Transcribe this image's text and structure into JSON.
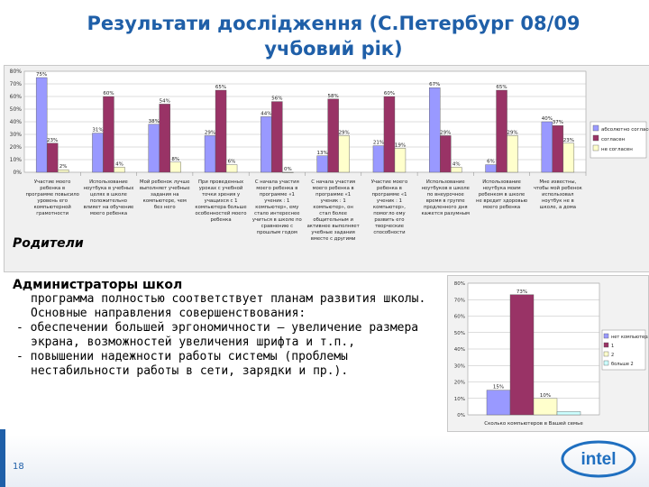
{
  "slide": {
    "title_line1": "Результати дослідження (С.Петербург 08/09",
    "title_line2": "учбовий рік)",
    "parents_label": "Родители",
    "page_number": "18",
    "logo_text": "intel"
  },
  "admin": {
    "title": "Администраторы школ",
    "text": "программа полностью соответствует планам развития школы. Основные направления совершенствования:",
    "items": [
      "- обеспечении большей эргономичности – увеличение размера экрана, возможностей увеличения шрифта и т.п.,",
      "- повышении надежности работы системы (проблемы нестабильности работы в сети, зарядки и пр.)."
    ]
  },
  "chart_data": [
    {
      "type": "bar",
      "ylim": [
        0,
        80
      ],
      "yticks": [
        "80%",
        "70%",
        "60%",
        "50%",
        "40%",
        "30%",
        "20%",
        "10%",
        "0%"
      ],
      "legend_position": "right",
      "categories": [
        "Участие моего ребенка в программе повысило уровень его компьютерной грамотности",
        "Использование ноутбука в учебных целях в школе положительно влияет на обучение моего ребенка",
        "Мой ребенок лучше выполняет учебные задания на компьютере, чем без него",
        "При проведенных уроках с учебной точки зрения у учащихся с 1 компьютера больше особенностей моего ребенка",
        "С начала участия моего ребенка в программе «1 ученик : 1 компьютер», ему стало интереснее учиться в школе по сравнению с прошлым годом",
        "С начала участия моего ребенка в программе «1 ученик : 1 компьютер», он стал более общительным и активнее выполняет учебные задания вместе с другими учащимися",
        "Участие моего ребенка в программе «1 ученик : 1 компьютер», помогло ему развить его творческие способности",
        "Использование ноутбуков в школе по внеурочное время в группе продленного дня кажется разумным",
        "Использование ноутбука моим ребенком в школе не вредит здоровью моего ребенка",
        "Мне известны, чтобы мой ребенок использовал ноутбук не в школе, а дома"
      ],
      "series": [
        {
          "name": "абсолютно согласен",
          "color": "#9999ff",
          "values": [
            75,
            31,
            38,
            29,
            44,
            13,
            21,
            67,
            6,
            40
          ]
        },
        {
          "name": "согласен",
          "color": "#993366",
          "values": [
            23,
            60,
            54,
            65,
            56,
            58,
            60,
            29,
            65,
            37
          ]
        },
        {
          "name": "не согласен",
          "color": "#ffffcc",
          "values": [
            2,
            4,
            8,
            6,
            0,
            29,
            19,
            4,
            29,
            23
          ]
        }
      ],
      "value_labels": [
        [
          "75%",
          "31%",
          "38%",
          "29%",
          "44%",
          "13%",
          "21%",
          "67%",
          "6%",
          "40%"
        ],
        [
          "23%",
          "60%",
          "54%",
          "65%",
          "56%",
          "58%",
          "60%",
          "29%",
          "65%",
          "37%"
        ],
        [
          "2%",
          "4%",
          "8%",
          "6%",
          "0%",
          "29%",
          "19%",
          "4%",
          "29%",
          "23%"
        ]
      ]
    },
    {
      "type": "bar",
      "ylim": [
        0,
        80
      ],
      "yticks": [
        "80%",
        "70%",
        "60%",
        "50%",
        "40%",
        "30%",
        "20%",
        "10%",
        "0%"
      ],
      "legend_position": "right",
      "xlabel": "Сколько компьютеров в Вашей семье",
      "series": [
        {
          "name": "нет компьютера",
          "color": "#9999ff",
          "value": 15,
          "label": "15%"
        },
        {
          "name": "1",
          "color": "#993366",
          "value": 73,
          "label": "73%"
        },
        {
          "name": "2",
          "color": "#ffffcc",
          "value": 10,
          "label": "10%"
        },
        {
          "name": "больше 2",
          "color": "#ccffff",
          "value": 2,
          "label": ""
        }
      ]
    }
  ]
}
